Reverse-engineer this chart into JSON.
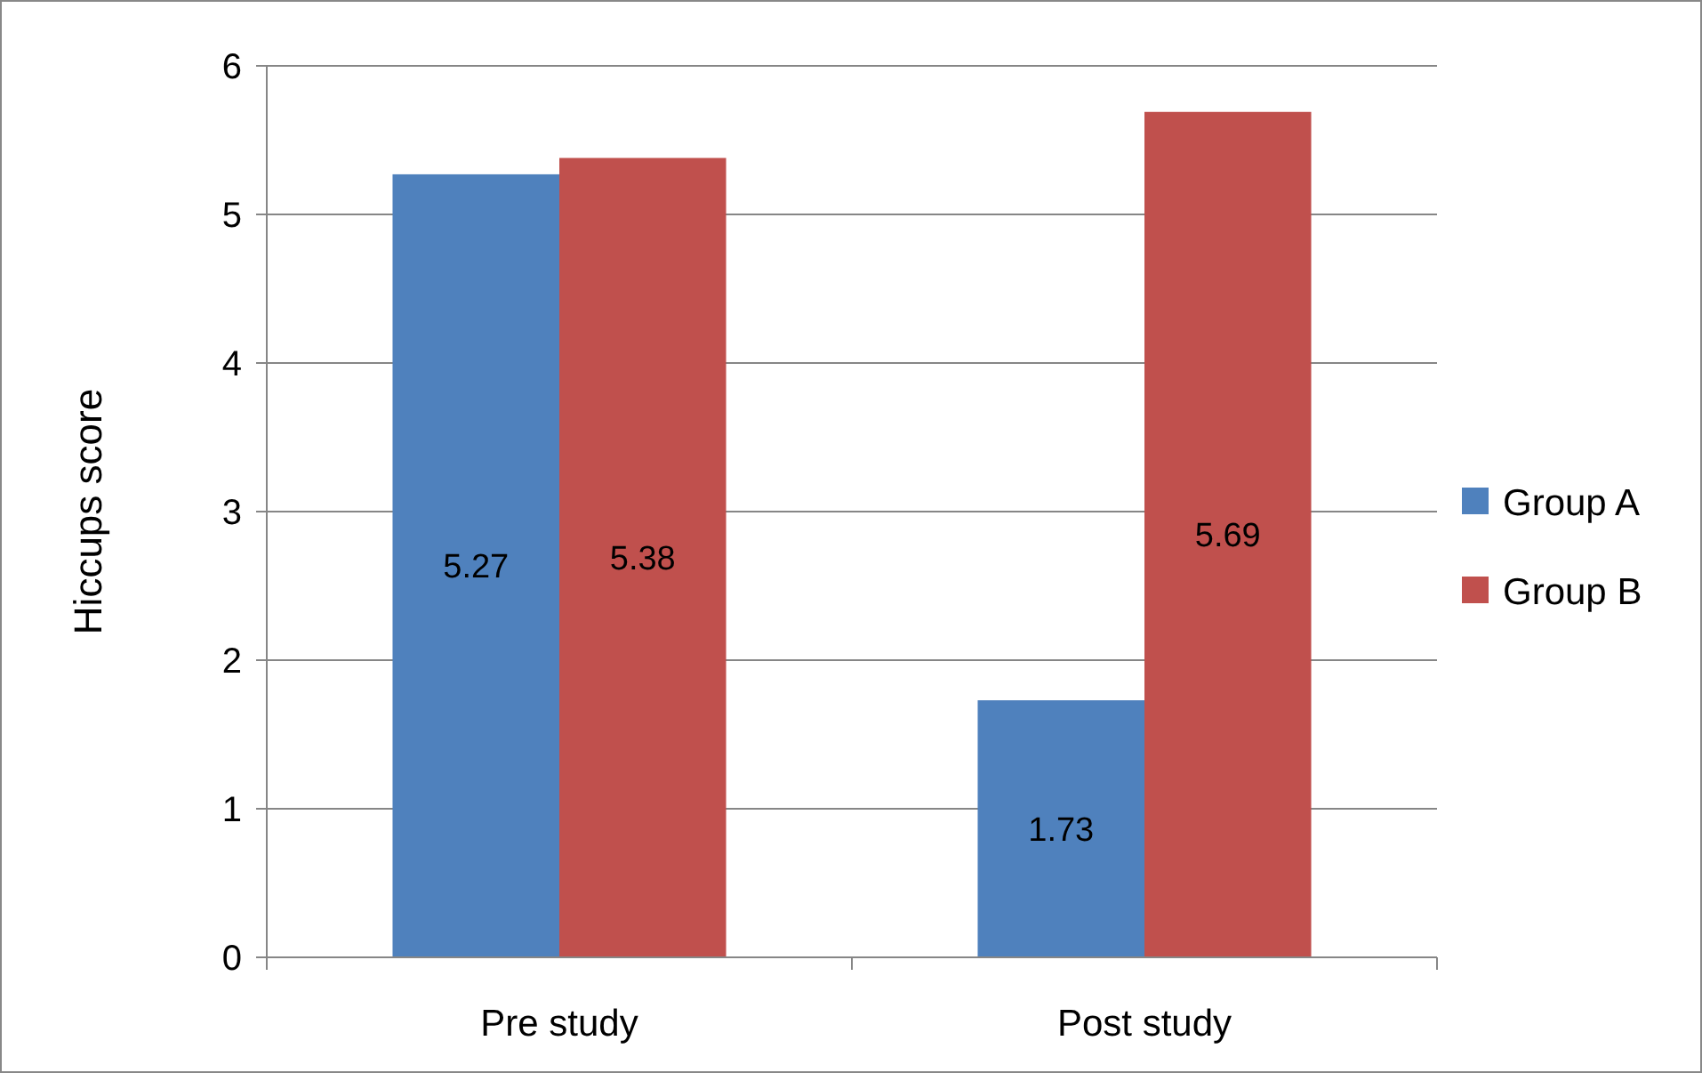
{
  "chart_data": {
    "type": "bar",
    "ylabel": "Hiccups score",
    "categories": [
      "Pre study",
      "Post study"
    ],
    "series": [
      {
        "name": "Group A",
        "color": "#4f81bd",
        "values": [
          5.27,
          1.73
        ]
      },
      {
        "name": "Group B",
        "color": "#c0504d",
        "values": [
          5.38,
          5.69
        ]
      }
    ],
    "ylim": [
      0,
      6
    ],
    "yticks": [
      0,
      1,
      2,
      3,
      4,
      5,
      6
    ],
    "grid": "y",
    "legend": "right",
    "data_labels": true
  }
}
